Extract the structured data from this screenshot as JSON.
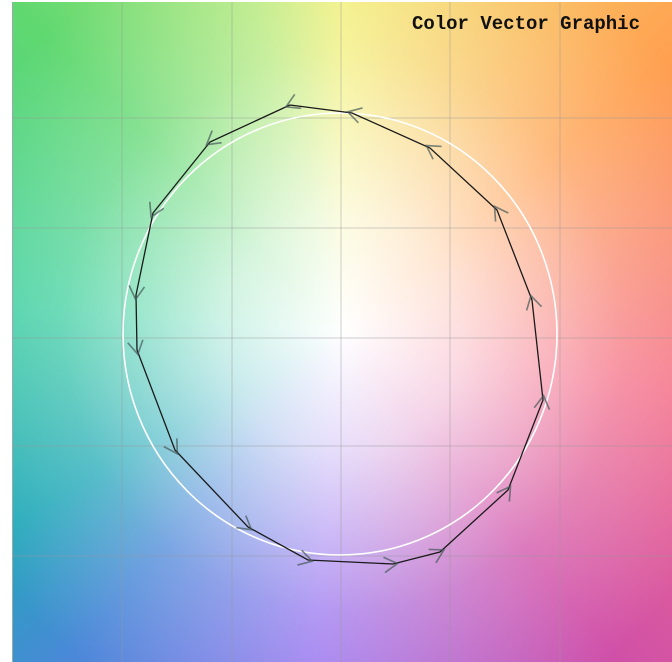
{
  "header": {
    "title": "Color Vector Graphic"
  }
}
